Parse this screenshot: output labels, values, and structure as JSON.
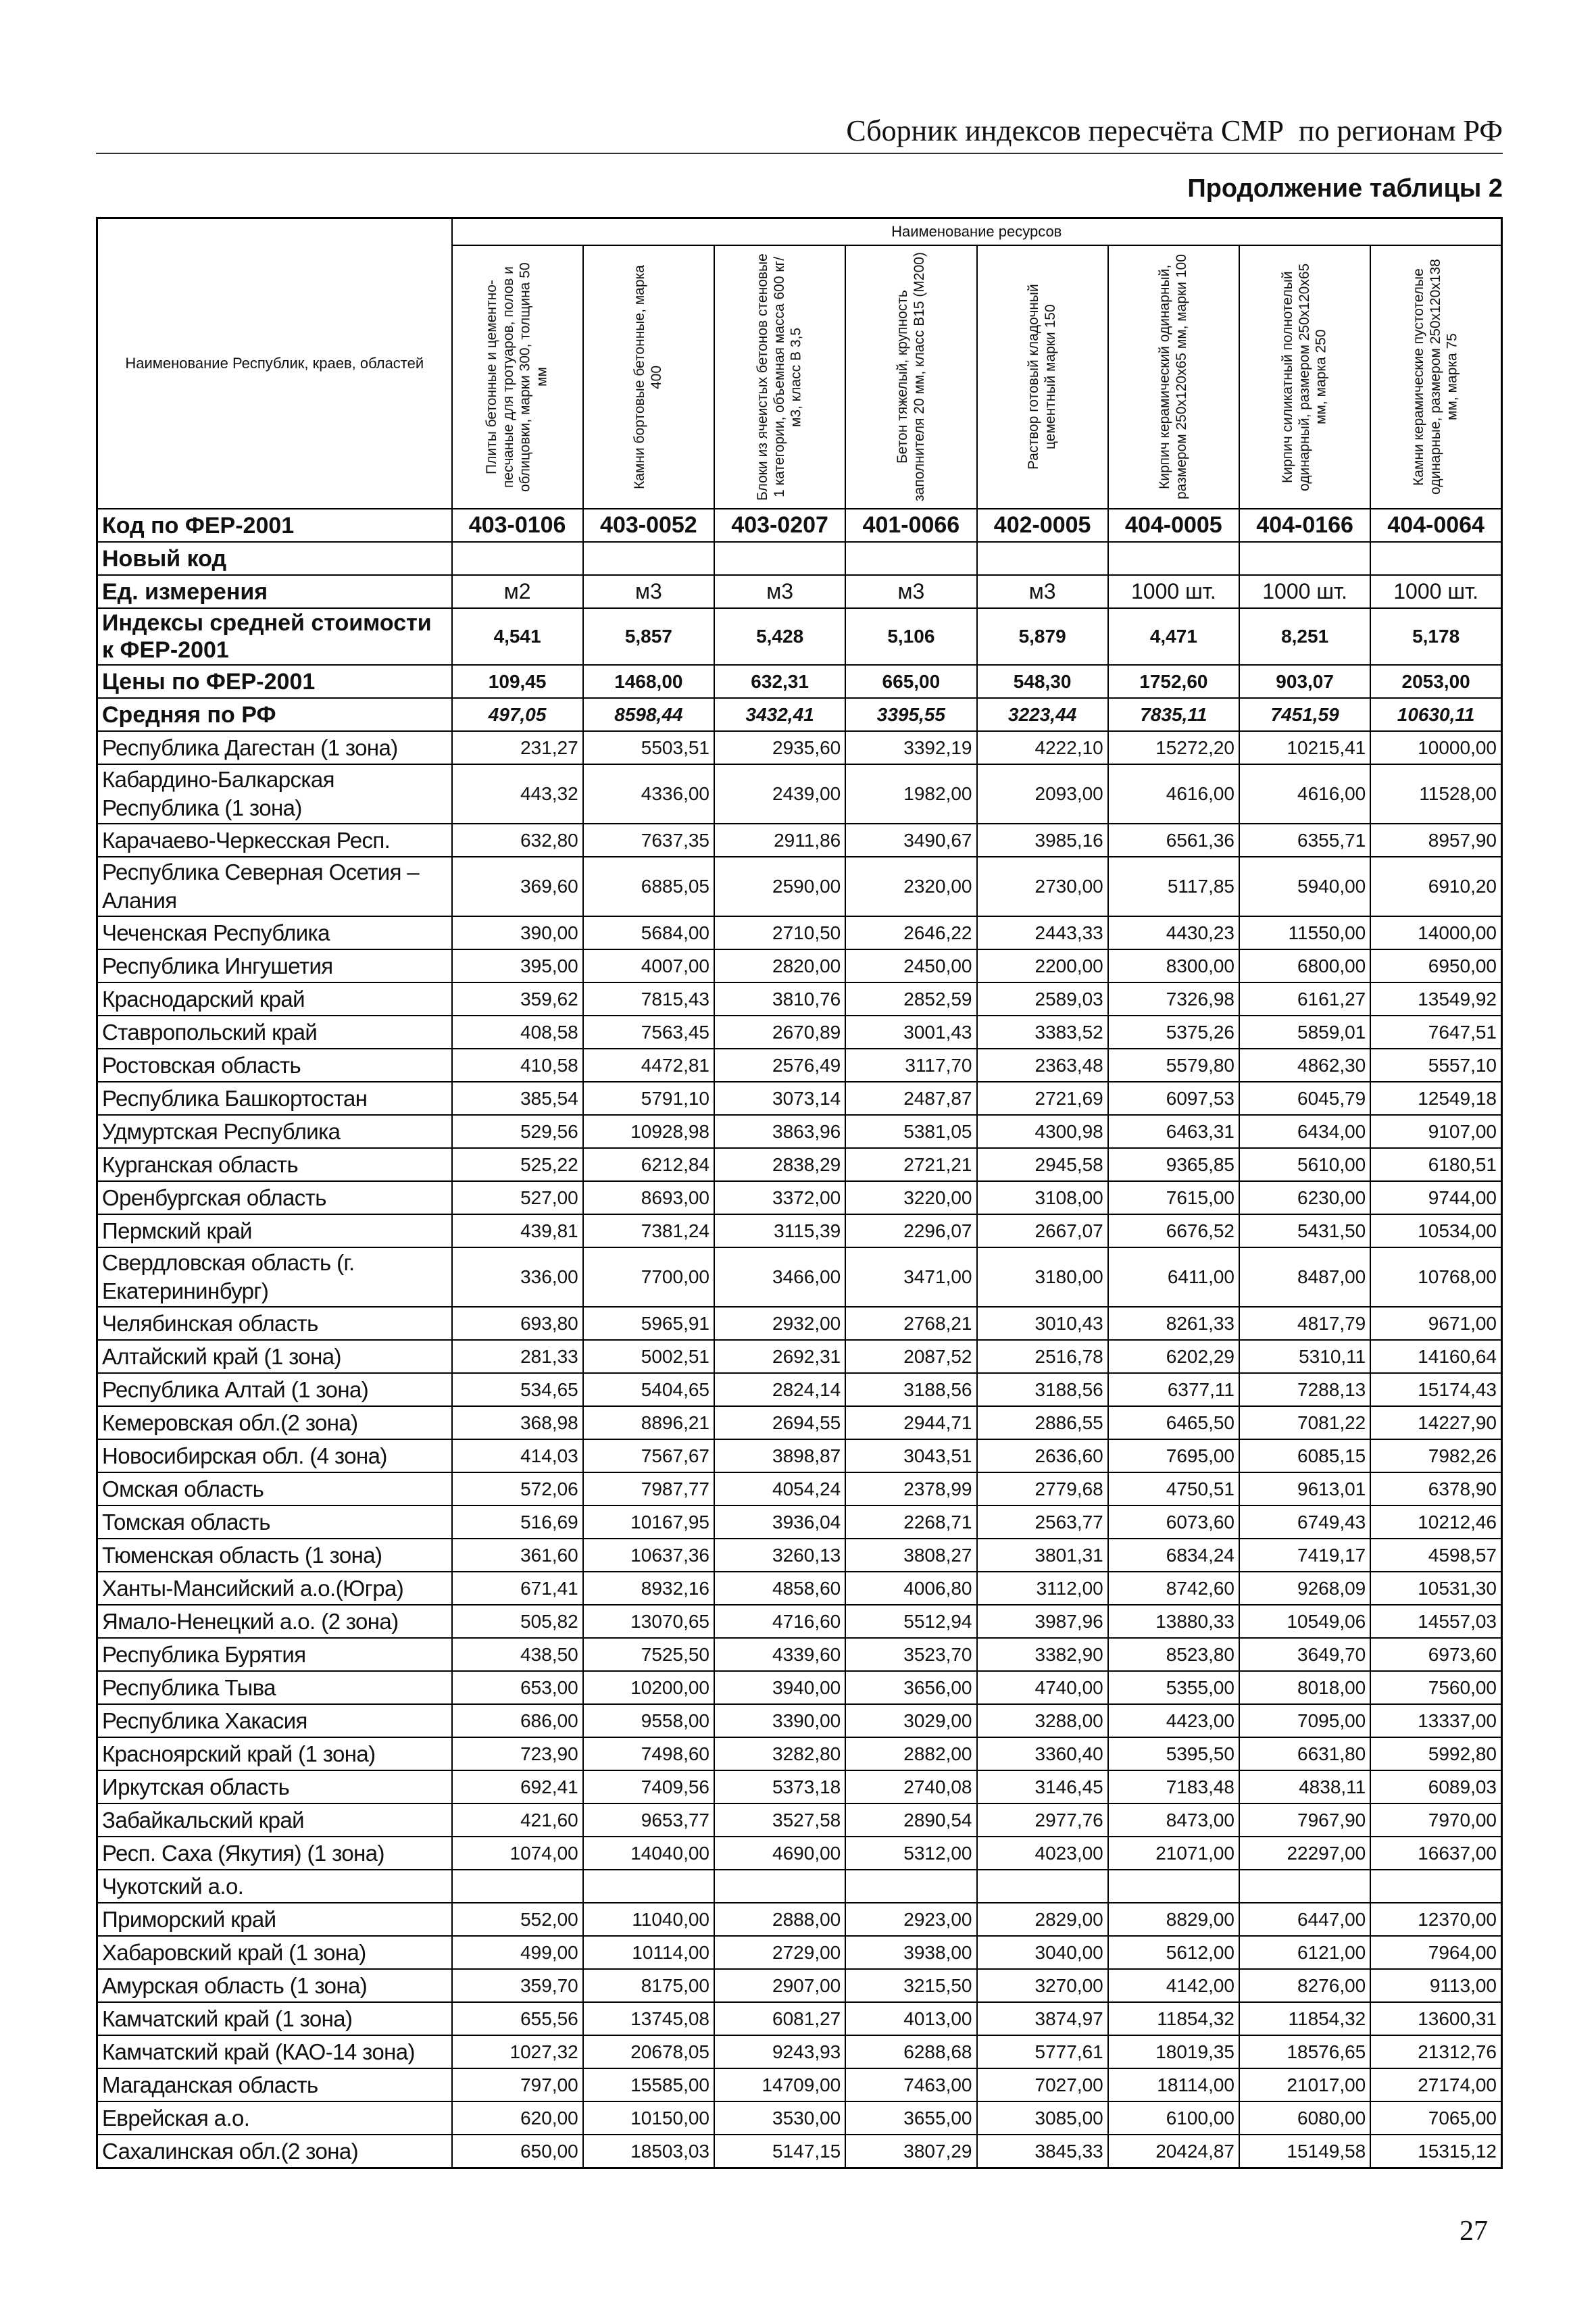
{
  "header": {
    "title": "Сборник индексов пересчёта СМР  по регионам РФ",
    "subtitle": "Продолжение таблицы 2"
  },
  "table": {
    "corner_header": "Наименование Республик, краев, областей",
    "group_header": "Наименование ресурсов",
    "columns": [
      "Плиты бетонные и цементно-песчаные для тротуаров, полов и облицовки, марки 300, толщина 50 мм",
      "Камни бортовые бетонные, марка 400",
      "Блоки из ячеистых бетонов стеновые 1 категории, объемная масса 600 кг/м3, класс В 3,5",
      "Бетон тяжелый, крупность заполнителя 20 мм, класс В15 (М200)",
      "Раствор готовый кладочный цементный марки 150",
      "Кирпич керамический одинарный, размером 250х120х65 мм, марки 100",
      "Кирпич силикатный полнотелый одинарный, размером 250х120х65 мм, марка 250",
      "Камни керамические пустотелые одинарные, размером 250х120х138 мм, марка 75"
    ],
    "meta_rows": [
      {
        "label": "Код по ФЕР-2001",
        "values": [
          "403-0106",
          "403-0052",
          "403-0207",
          "401-0066",
          "402-0005",
          "404-0005",
          "404-0166",
          "404-0064"
        ]
      },
      {
        "label": "Новый код"
      },
      {
        "label": "Ед. измерения",
        "values": [
          "м2",
          "м3",
          "м3",
          "м3",
          "м3",
          "1000 шт.",
          "1000 шт.",
          "1000 шт."
        ]
      },
      {
        "label": "Индексы средней стоимости к ФЕР-2001",
        "values": [
          "4,541",
          "5,857",
          "5,428",
          "5,106",
          "5,879",
          "4,471",
          "8,251",
          "5,178"
        ]
      },
      {
        "label": "Цены по ФЕР-2001",
        "values": [
          "109,45",
          "1468,00",
          "632,31",
          "665,00",
          "548,30",
          "1752,60",
          "903,07",
          "2053,00"
        ]
      },
      {
        "label": "Средняя по РФ",
        "values": [
          "497,05",
          "8598,44",
          "3432,41",
          "3395,55",
          "3223,44",
          "7835,11",
          "7451,59",
          "10630,11"
        ]
      }
    ],
    "rows": [
      {
        "name": "Республика Дагестан (1 зона)",
        "values": [
          "231,27",
          "5503,51",
          "2935,60",
          "3392,19",
          "4222,10",
          "15272,20",
          "10215,41",
          "10000,00"
        ]
      },
      {
        "name": "Кабардино-Балкарская Республика (1 зона)",
        "values": [
          "443,32",
          "4336,00",
          "2439,00",
          "1982,00",
          "2093,00",
          "4616,00",
          "4616,00",
          "11528,00"
        ]
      },
      {
        "name": "Карачаево-Черкесская Респ.",
        "values": [
          "632,80",
          "7637,35",
          "2911,86",
          "3490,67",
          "3985,16",
          "6561,36",
          "6355,71",
          "8957,90"
        ]
      },
      {
        "name": "Республика Северная Осетия – Алания",
        "values": [
          "369,60",
          "6885,05",
          "2590,00",
          "2320,00",
          "2730,00",
          "5117,85",
          "5940,00",
          "6910,20"
        ]
      },
      {
        "name": "Чеченская Республика",
        "values": [
          "390,00",
          "5684,00",
          "2710,50",
          "2646,22",
          "2443,33",
          "4430,23",
          "11550,00",
          "14000,00"
        ]
      },
      {
        "name": "Республика Ингушетия",
        "values": [
          "395,00",
          "4007,00",
          "2820,00",
          "2450,00",
          "2200,00",
          "8300,00",
          "6800,00",
          "6950,00"
        ]
      },
      {
        "name": "Краснодарский край",
        "values": [
          "359,62",
          "7815,43",
          "3810,76",
          "2852,59",
          "2589,03",
          "7326,98",
          "6161,27",
          "13549,92"
        ]
      },
      {
        "name": "Ставропольский край",
        "values": [
          "408,58",
          "7563,45",
          "2670,89",
          "3001,43",
          "3383,52",
          "5375,26",
          "5859,01",
          "7647,51"
        ]
      },
      {
        "name": "Ростовская область",
        "values": [
          "410,58",
          "4472,81",
          "2576,49",
          "3117,70",
          "2363,48",
          "5579,80",
          "4862,30",
          "5557,10"
        ]
      },
      {
        "name": "Республика Башкортостан",
        "values": [
          "385,54",
          "5791,10",
          "3073,14",
          "2487,87",
          "2721,69",
          "6097,53",
          "6045,79",
          "12549,18"
        ]
      },
      {
        "name": "Удмуртская Республика",
        "values": [
          "529,56",
          "10928,98",
          "3863,96",
          "5381,05",
          "4300,98",
          "6463,31",
          "6434,00",
          "9107,00"
        ]
      },
      {
        "name": "Курганская область",
        "values": [
          "525,22",
          "6212,84",
          "2838,29",
          "2721,21",
          "2945,58",
          "9365,85",
          "5610,00",
          "6180,51"
        ]
      },
      {
        "name": "Оренбургская область",
        "values": [
          "527,00",
          "8693,00",
          "3372,00",
          "3220,00",
          "3108,00",
          "7615,00",
          "6230,00",
          "9744,00"
        ]
      },
      {
        "name": "Пермский край",
        "values": [
          "439,81",
          "7381,24",
          "3115,39",
          "2296,07",
          "2667,07",
          "6676,52",
          "5431,50",
          "10534,00"
        ]
      },
      {
        "name": "Свердловская область (г. Екатерининбург)",
        "values": [
          "336,00",
          "7700,00",
          "3466,00",
          "3471,00",
          "3180,00",
          "6411,00",
          "8487,00",
          "10768,00"
        ]
      },
      {
        "name": "Челябинская область",
        "values": [
          "693,80",
          "5965,91",
          "2932,00",
          "2768,21",
          "3010,43",
          "8261,33",
          "4817,79",
          "9671,00"
        ]
      },
      {
        "name": "Алтайский край (1 зона)",
        "values": [
          "281,33",
          "5002,51",
          "2692,31",
          "2087,52",
          "2516,78",
          "6202,29",
          "5310,11",
          "14160,64"
        ]
      },
      {
        "name": "Республика Алтай (1 зона)",
        "values": [
          "534,65",
          "5404,65",
          "2824,14",
          "3188,56",
          "3188,56",
          "6377,11",
          "7288,13",
          "15174,43"
        ]
      },
      {
        "name": "Кемеровская обл.(2 зона)",
        "values": [
          "368,98",
          "8896,21",
          "2694,55",
          "2944,71",
          "2886,55",
          "6465,50",
          "7081,22",
          "14227,90"
        ]
      },
      {
        "name": "Новосибирская обл. (4 зона)",
        "values": [
          "414,03",
          "7567,67",
          "3898,87",
          "3043,51",
          "2636,60",
          "7695,00",
          "6085,15",
          "7982,26"
        ]
      },
      {
        "name": "Омская область",
        "values": [
          "572,06",
          "7987,77",
          "4054,24",
          "2378,99",
          "2779,68",
          "4750,51",
          "9613,01",
          "6378,90"
        ]
      },
      {
        "name": "Томская область",
        "values": [
          "516,69",
          "10167,95",
          "3936,04",
          "2268,71",
          "2563,77",
          "6073,60",
          "6749,43",
          "10212,46"
        ]
      },
      {
        "name": "Тюменская область (1 зона)",
        "values": [
          "361,60",
          "10637,36",
          "3260,13",
          "3808,27",
          "3801,31",
          "6834,24",
          "7419,17",
          "4598,57"
        ]
      },
      {
        "name": "Ханты-Мансийский а.о.(Югра)",
        "values": [
          "671,41",
          "8932,16",
          "4858,60",
          "4006,80",
          "3112,00",
          "8742,60",
          "9268,09",
          "10531,30"
        ]
      },
      {
        "name": "Ямало-Ненецкий а.о. (2 зона)",
        "values": [
          "505,82",
          "13070,65",
          "4716,60",
          "5512,94",
          "3987,96",
          "13880,33",
          "10549,06",
          "14557,03"
        ]
      },
      {
        "name": "Республика Бурятия",
        "values": [
          "438,50",
          "7525,50",
          "4339,60",
          "3523,70",
          "3382,90",
          "8523,80",
          "3649,70",
          "6973,60"
        ]
      },
      {
        "name": "Республика Тыва",
        "values": [
          "653,00",
          "10200,00",
          "3940,00",
          "3656,00",
          "4740,00",
          "5355,00",
          "8018,00",
          "7560,00"
        ]
      },
      {
        "name": "Республика Хакасия",
        "values": [
          "686,00",
          "9558,00",
          "3390,00",
          "3029,00",
          "3288,00",
          "4423,00",
          "7095,00",
          "13337,00"
        ]
      },
      {
        "name": "Красноярский край (1 зона)",
        "values": [
          "723,90",
          "7498,60",
          "3282,80",
          "2882,00",
          "3360,40",
          "5395,50",
          "6631,80",
          "5992,80"
        ]
      },
      {
        "name": "Иркутская область",
        "values": [
          "692,41",
          "7409,56",
          "5373,18",
          "2740,08",
          "3146,45",
          "7183,48",
          "4838,11",
          "6089,03"
        ]
      },
      {
        "name": "Забайкальский край",
        "values": [
          "421,60",
          "9653,77",
          "3527,58",
          "2890,54",
          "2977,76",
          "8473,00",
          "7967,90",
          "7970,00"
        ]
      },
      {
        "name": "Респ. Саха (Якутия) (1 зона)",
        "values": [
          "1074,00",
          "14040,00",
          "4690,00",
          "5312,00",
          "4023,00",
          "21071,00",
          "22297,00",
          "16637,00"
        ]
      },
      {
        "name": "Чукотский а.о."
      },
      {
        "name": "Приморский край",
        "values": [
          "552,00",
          "11040,00",
          "2888,00",
          "2923,00",
          "2829,00",
          "8829,00",
          "6447,00",
          "12370,00"
        ]
      },
      {
        "name": "Хабаровский край (1 зона)",
        "values": [
          "499,00",
          "10114,00",
          "2729,00",
          "3938,00",
          "3040,00",
          "5612,00",
          "6121,00",
          "7964,00"
        ]
      },
      {
        "name": "Амурская область  (1 зона)",
        "values": [
          "359,70",
          "8175,00",
          "2907,00",
          "3215,50",
          "3270,00",
          "4142,00",
          "8276,00",
          "9113,00"
        ]
      },
      {
        "name": "Камчатский край (1 зона)",
        "values": [
          "655,56",
          "13745,08",
          "6081,27",
          "4013,00",
          "3874,97",
          "11854,32",
          "11854,32",
          "13600,31"
        ]
      },
      {
        "name": "Камчатский край (КАО-14 зона)",
        "values": [
          "1027,32",
          "20678,05",
          "9243,93",
          "6288,68",
          "5777,61",
          "18019,35",
          "18576,65",
          "21312,76"
        ]
      },
      {
        "name": "Магаданская область",
        "values": [
          "797,00",
          "15585,00",
          "14709,00",
          "7463,00",
          "7027,00",
          "18114,00",
          "21017,00",
          "27174,00"
        ]
      },
      {
        "name": "Еврейская а.о.",
        "values": [
          "620,00",
          "10150,00",
          "3530,00",
          "3655,00",
          "3085,00",
          "6100,00",
          "6080,00",
          "7065,00"
        ]
      },
      {
        "name": "Сахалинская обл.(2 зона)",
        "values": [
          "650,00",
          "18503,03",
          "5147,15",
          "3807,29",
          "3845,33",
          "20424,87",
          "15149,58",
          "15315,12"
        ]
      }
    ]
  },
  "page_number": "27"
}
